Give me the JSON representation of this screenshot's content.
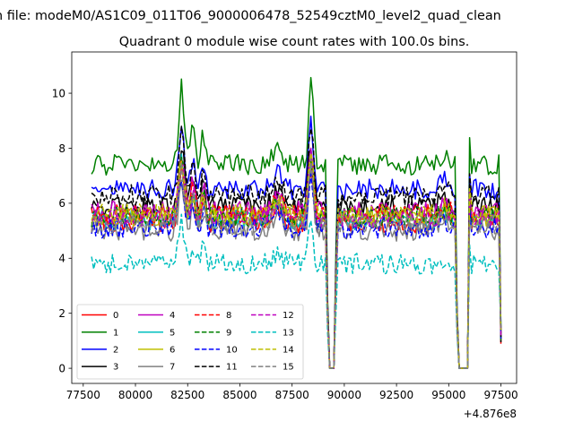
{
  "chart_data": {
    "type": "line",
    "suptitle": "n file: modeM0/AS1C09_011T06_9000006478_52549cztM0_level2_quad_clean",
    "title": "Quadrant 0 module wise count rates with 100.0s bins.",
    "xlabel": "",
    "ylabel": "",
    "x_offset_label": "+4.876e8",
    "xlim": [
      76950,
      98250
    ],
    "ylim": [
      -0.55,
      11.5
    ],
    "x_ticks": [
      77500,
      80000,
      82500,
      85000,
      87500,
      90000,
      92500,
      95000,
      97500
    ],
    "x_tick_labels": [
      "77500",
      "80000",
      "82500",
      "85000",
      "87500",
      "90000",
      "92500",
      "95000",
      "97500"
    ],
    "y_ticks": [
      0,
      2,
      4,
      6,
      8,
      10
    ],
    "y_tick_labels": [
      "0",
      "2",
      "4",
      "6",
      "8",
      "10"
    ],
    "x_start": 77900,
    "x_step": 100,
    "x_end": 97500,
    "legend_location": "lower-left",
    "legend_columns": 4,
    "series": [
      {
        "name": "0",
        "color": "#ff0000",
        "style": "solid",
        "base": 5.3
      },
      {
        "name": "1",
        "color": "#008000",
        "style": "solid",
        "base": 7.4
      },
      {
        "name": "2",
        "color": "#0000ff",
        "style": "solid",
        "base": 6.5
      },
      {
        "name": "3",
        "color": "#000000",
        "style": "solid",
        "base": 5.9
      },
      {
        "name": "4",
        "color": "#bf00bf",
        "style": "solid",
        "base": 5.7
      },
      {
        "name": "5",
        "color": "#00bfbf",
        "style": "solid",
        "base": 5.4
      },
      {
        "name": "6",
        "color": "#bfbf00",
        "style": "solid",
        "base": 5.5
      },
      {
        "name": "7",
        "color": "#808080",
        "style": "solid",
        "base": 5.0
      },
      {
        "name": "8",
        "color": "#ff0000",
        "style": "dashed",
        "base": 5.6
      },
      {
        "name": "9",
        "color": "#008000",
        "style": "dashed",
        "base": 5.5
      },
      {
        "name": "10",
        "color": "#0000ff",
        "style": "dashed",
        "base": 5.1
      },
      {
        "name": "11",
        "color": "#000000",
        "style": "dashed",
        "base": 6.3
      },
      {
        "name": "12",
        "color": "#bf00bf",
        "style": "dashed",
        "base": 5.5
      },
      {
        "name": "13",
        "color": "#00bfbf",
        "style": "dashed",
        "base": 3.8
      },
      {
        "name": "14",
        "color": "#bfbf00",
        "style": "dashed",
        "base": 5.6
      },
      {
        "name": "15",
        "color": "#808080",
        "style": "dashed",
        "base": 5.2
      }
    ],
    "features": {
      "flare_1": {
        "x": 82200,
        "peak_series_1": 10.9
      },
      "flare_2": {
        "x": 88400,
        "peak_series_1": 10.6
      },
      "gaps": [
        {
          "start": 89300,
          "end": 89500,
          "value": 0
        },
        {
          "start": 95500,
          "end": 95900,
          "value": 0
        }
      ],
      "final_value": 1.2
    }
  }
}
